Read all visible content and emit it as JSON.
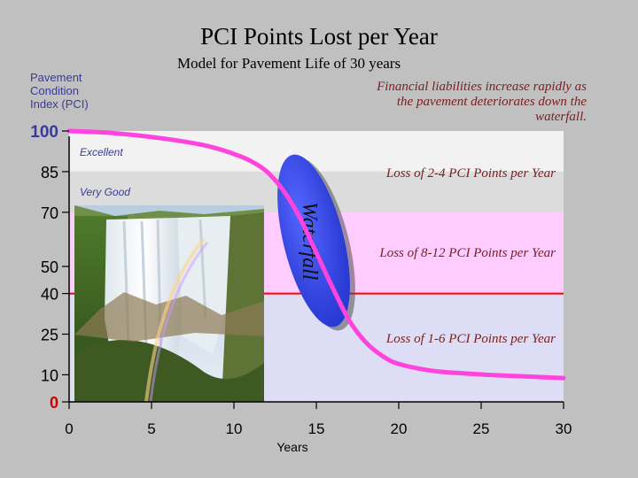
{
  "chart_data": {
    "type": "line",
    "title": "PCI Points Lost per Year",
    "subtitle": "Model for Pavement Life of 30 years",
    "ylabel": "Pavement\nCondition\nIndex (PCI)",
    "xlabel": "Years",
    "xlim": [
      0,
      30
    ],
    "ylim": [
      0,
      100
    ],
    "x_ticks": [
      "0",
      "5",
      "10",
      "15",
      "20",
      "25",
      "30"
    ],
    "y_ticks": [
      "0",
      "10",
      "25",
      "40",
      "50",
      "70",
      "85",
      "100"
    ],
    "bands": [
      {
        "from": 85,
        "to": 100,
        "color": "#f2f2f2"
      },
      {
        "from": 70,
        "to": 85,
        "color": "#dcdcdc"
      },
      {
        "from": 40,
        "to": 70,
        "color": "#ffccff"
      },
      {
        "from": 0,
        "to": 40,
        "color": "#ddddf6"
      }
    ],
    "threshold_line": {
      "y": 40,
      "color": "#ff0000"
    },
    "series": [
      {
        "color": "#ff44dd",
        "x": [
          0,
          2,
          4,
          6,
          8,
          9,
          10,
          11,
          12,
          13,
          14,
          15,
          16,
          17,
          18,
          19,
          20,
          22,
          24,
          26,
          28,
          30
        ],
        "y": [
          100,
          99.5,
          98.5,
          97,
          95,
          93.5,
          91.5,
          89,
          85,
          78,
          68,
          55,
          42,
          30,
          22,
          17,
          14,
          11.5,
          10.5,
          9.8,
          9.3,
          8.8
        ]
      }
    ],
    "annotations": {
      "excellent": "Excellent",
      "very_good": "Very Good",
      "rate_high": "Loss of 2-4 PCI Points per Year",
      "rate_mid": "Loss of 8-12 PCI Points per Year",
      "rate_low": "Loss of 1-6 PCI Points per Year",
      "waterfall": "Waterfall",
      "note": "Financial liabilities increase rapidly as the pavement deteriorates down the waterfall."
    }
  },
  "colors": {
    "axis_labels": "#3a3a9a",
    "zero_label": "#cc0000",
    "note": "#7a2020",
    "waterfall_fill": "#3344ee"
  },
  "photo": {
    "icon": "waterfall-photo"
  }
}
